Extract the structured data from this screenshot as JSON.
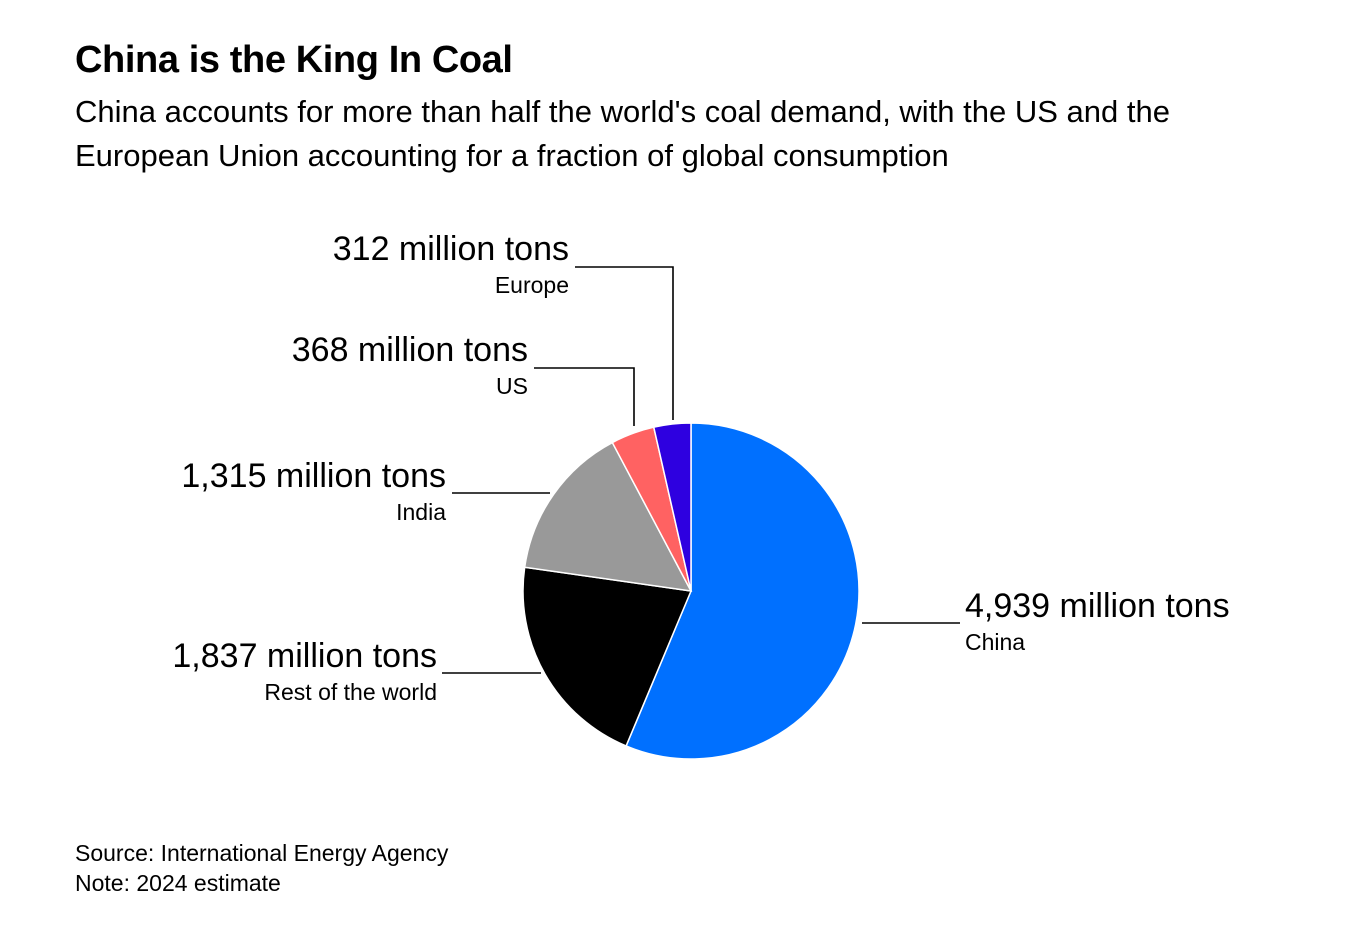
{
  "title": "China is the King In Coal",
  "subtitle": "China accounts for more than half the world's coal demand, with the US and the European Union accounting for a fraction of global consumption",
  "chart_data": {
    "type": "pie",
    "unit": "million tons",
    "start_angle_deg": 0,
    "direction": "clockwise",
    "slices": [
      {
        "category": "China",
        "value": 4939,
        "value_label": "4,939 million tons",
        "color": "#0070ff"
      },
      {
        "category": "Rest of the world",
        "value": 1837,
        "value_label": "1,837 million tons",
        "color": "#000000"
      },
      {
        "category": "India",
        "value": 1315,
        "value_label": "1,315 million tons",
        "color": "#999999"
      },
      {
        "category": "US",
        "value": 368,
        "value_label": "368 million tons",
        "color": "#ff6262"
      },
      {
        "category": "Europe",
        "value": 312,
        "value_label": "312 million tons",
        "color": "#2e00e0"
      }
    ]
  },
  "source": "Source: International Energy Agency",
  "note": "Note: 2024 estimate"
}
